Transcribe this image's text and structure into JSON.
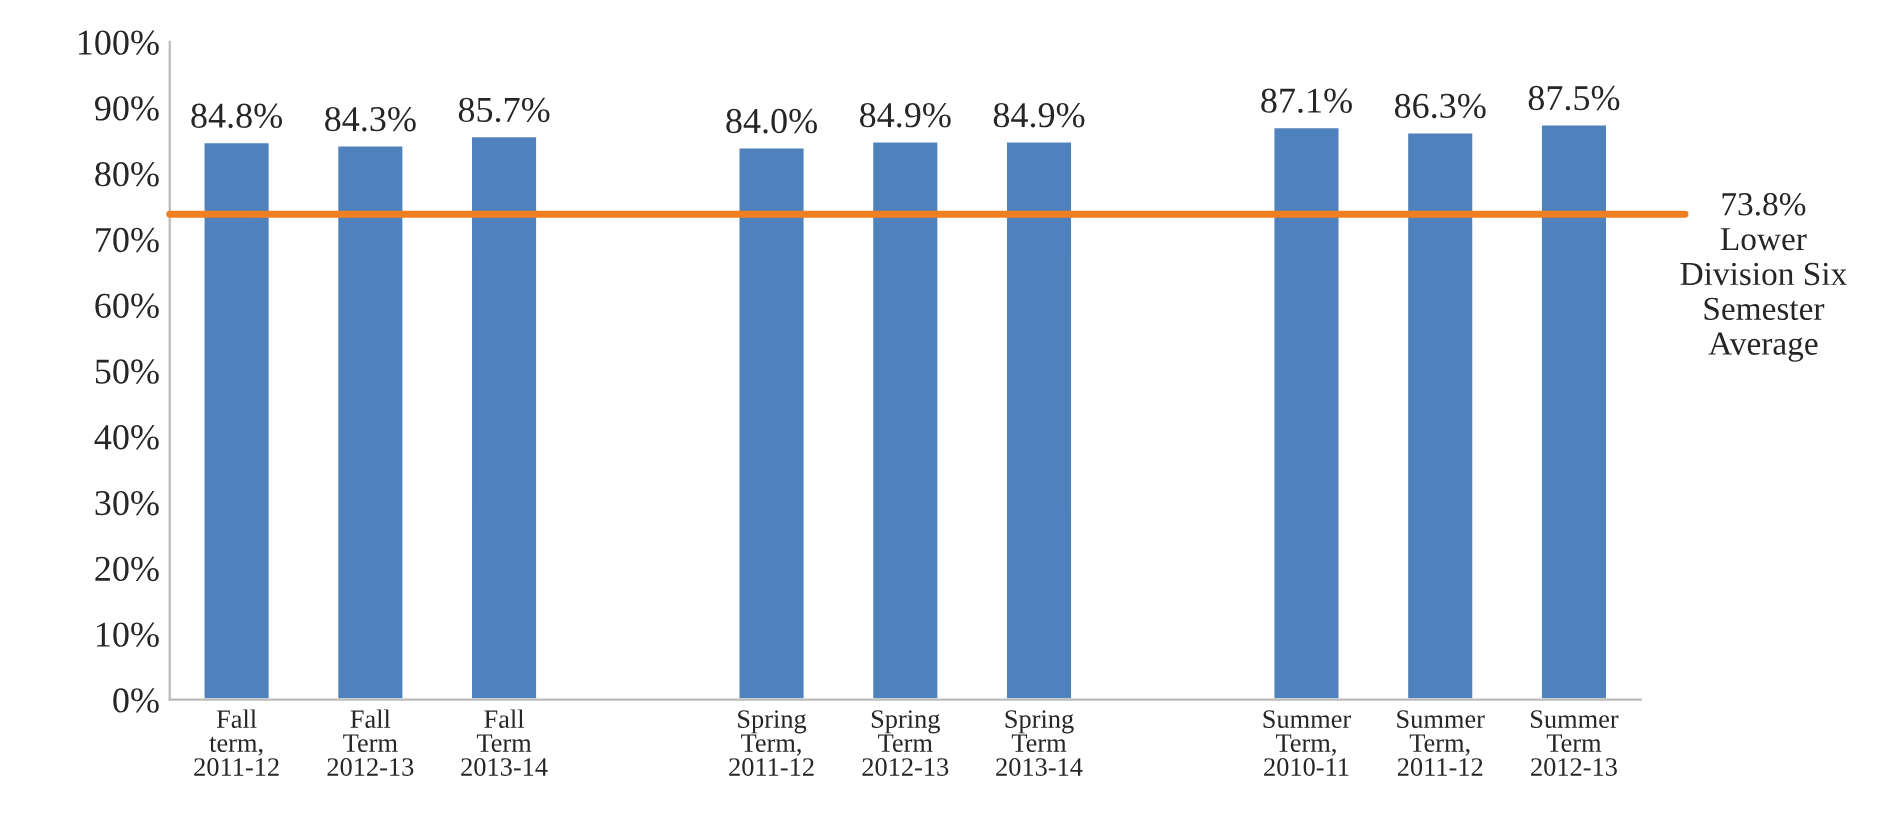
{
  "chart_data": {
    "type": "bar",
    "categories": [
      "Fall\nterm,\n2011-12",
      "Fall\nTerm\n2012-13",
      "Fall\nTerm\n2013-14",
      null,
      "Spring\nTerm,\n2011-12",
      "Spring\nTerm\n2012-13",
      "Spring\nTerm\n2013-14",
      null,
      "Summer\nTerm,\n2010-11",
      "Summer\nTerm,\n2011-12",
      "Summer\nTerm\n2012-13"
    ],
    "values": [
      84.8,
      84.3,
      85.7,
      null,
      84.0,
      84.9,
      84.9,
      null,
      87.1,
      86.3,
      87.5
    ],
    "value_labels": [
      "84.8%",
      "84.3%",
      "85.7%",
      null,
      "84.0%",
      "84.9%",
      "84.9%",
      null,
      "87.1%",
      "86.3%",
      "87.5%"
    ],
    "color": "#4f81bd",
    "ylim": [
      0,
      100
    ],
    "yticks": [
      {
        "value": 0,
        "label": "0%"
      },
      {
        "value": 10,
        "label": "10%"
      },
      {
        "value": 20,
        "label": "20%"
      },
      {
        "value": 30,
        "label": "30%"
      },
      {
        "value": 40,
        "label": "40%"
      },
      {
        "value": 50,
        "label": "50%"
      },
      {
        "value": 60,
        "label": "60%"
      },
      {
        "value": 70,
        "label": "70%"
      },
      {
        "value": 80,
        "label": "80%"
      },
      {
        "value": 90,
        "label": "90%"
      },
      {
        "value": 100,
        "label": "100%"
      }
    ],
    "ref_lines": [
      {
        "axis": "y",
        "value": 73.8,
        "label": "73.8%\nLower\nDivision Six\nSemester\nAverage",
        "color": "#f07f22"
      }
    ],
    "grid": false,
    "legend": false
  }
}
